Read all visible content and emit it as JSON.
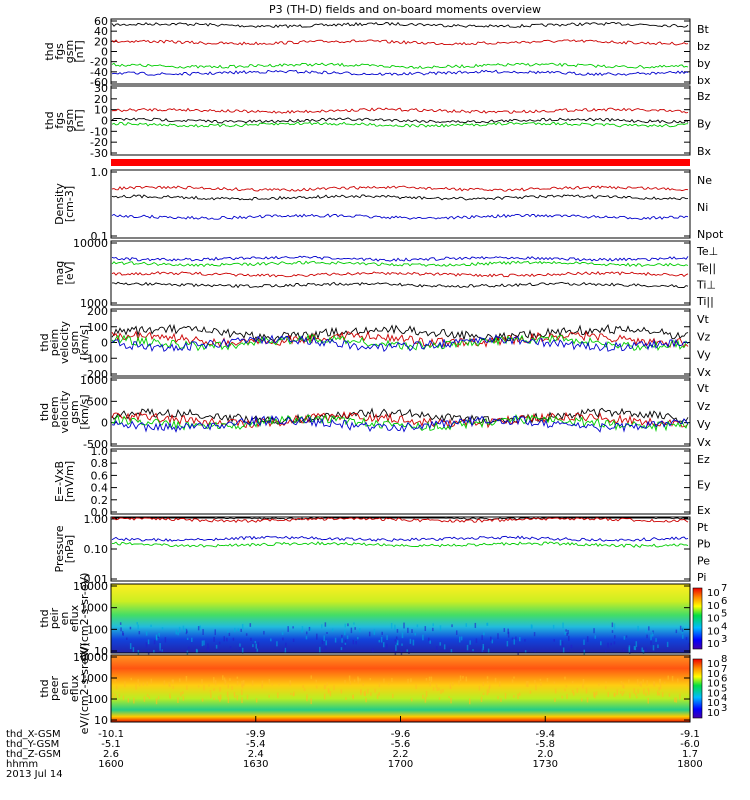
{
  "title": "P3 (TH-D) fields and on-board moments overview",
  "date": "2013 Jul 14",
  "colorbar_top_ticks": [
    "10",
    "10",
    "10",
    "10",
    "10"
  ],
  "colorbar_top_exps": [
    "7",
    "6",
    "5",
    "4",
    "3"
  ],
  "colorbar_bottom_ticks": [
    "10",
    "10",
    "10",
    "10",
    "10",
    "10"
  ],
  "colorbar_bottom_exps": [
    "8",
    "7",
    "6",
    "5",
    "4",
    "3"
  ],
  "ephemeris": {
    "row_labels": [
      "thd_X-GSM",
      "thd_Y-GSM",
      "thd_Z-GSM",
      "hhmm"
    ],
    "columns": [
      [
        "-10.1",
        "-5.1",
        "2.6",
        "1600"
      ],
      [
        "-9.9",
        "-5.4",
        "2.4",
        "1630"
      ],
      [
        "-9.6",
        "-5.6",
        "2.2",
        "1700"
      ],
      [
        "-9.4",
        "-5.8",
        "2.0",
        "1730"
      ],
      [
        "-9.1",
        "-6.0",
        "1.7",
        "1800"
      ]
    ]
  },
  "chart_data": [
    {
      "type": "line",
      "ylabel": "thd fgs gsm [nT]",
      "ylim": [
        -60,
        60
      ],
      "yticks": [
        "60",
        "40",
        "20",
        "0",
        "-20",
        "-40",
        "-60"
      ],
      "series": [
        {
          "name": "Bt",
          "color": "#000000",
          "level": 52
        },
        {
          "name": "bz",
          "color": "#cc0000",
          "level": 18
        },
        {
          "name": "by",
          "color": "#00cc00",
          "level": -28
        },
        {
          "name": "bx",
          "color": "#0000cc",
          "level": -42
        }
      ]
    },
    {
      "type": "line",
      "ylabel": "thd fgs gsm [nT]",
      "ylim": [
        -40,
        40
      ],
      "yticks": [
        "30",
        "20",
        "10",
        "0",
        "-10",
        "-20",
        "-30"
      ],
      "series": [
        {
          "name": "Bz",
          "color": "#cc0000",
          "level": 12
        },
        {
          "name": "By",
          "color": "#000000",
          "level": 0
        },
        {
          "name": "Bx",
          "color": "#00cc00",
          "level": -5
        }
      ]
    },
    {
      "type": "line",
      "ylabel": "Density [cm-3]",
      "scale": "log",
      "yticks": [
        "1.0",
        "0.1"
      ],
      "series": [
        {
          "name": "Ne",
          "color": "#cc0000",
          "level": 0.55
        },
        {
          "name": "Ni",
          "color": "#000000",
          "level": 0.4
        },
        {
          "name": "Npot",
          "color": "#0000cc",
          "level": 0.2
        }
      ]
    },
    {
      "type": "line",
      "ylabel": "mag [eV]",
      "scale": "log",
      "yticks": [
        "10000",
        "1000"
      ],
      "series": [
        {
          "name": "Te⊥",
          "color": "#cc0000",
          "level": 3000
        },
        {
          "name": "Te||",
          "color": "#000000",
          "level": 2000
        },
        {
          "name": "Ti⊥",
          "color": "#00cc00",
          "level": 4500
        },
        {
          "name": "Ti||",
          "color": "#0000cc",
          "level": 5500
        }
      ]
    },
    {
      "type": "line",
      "ylabel": "thd peim velocity gsm [km/s]",
      "ylim": [
        -200,
        200
      ],
      "yticks": [
        "200",
        "100",
        "0",
        "-100",
        "-200"
      ],
      "series": [
        {
          "name": "Vt",
          "color": "#000000",
          "level": 60
        },
        {
          "name": "Vz",
          "color": "#cc0000",
          "level": 20
        },
        {
          "name": "Vy",
          "color": "#00cc00",
          "level": 0
        },
        {
          "name": "Vx",
          "color": "#0000cc",
          "level": -5
        }
      ]
    },
    {
      "type": "line",
      "ylabel": "thd peem velocity gsm [km/s]",
      "ylim": [
        -500,
        1000
      ],
      "yticks": [
        "1000",
        "500",
        "0",
        "-500"
      ],
      "series": [
        {
          "name": "Vt",
          "color": "#000000",
          "level": 150
        },
        {
          "name": "Vz",
          "color": "#cc0000",
          "level": 60
        },
        {
          "name": "Vy",
          "color": "#00cc00",
          "level": 0
        },
        {
          "name": "Vx",
          "color": "#0000cc",
          "level": -30
        }
      ]
    },
    {
      "type": "line",
      "ylabel": "E=-VxB [mV/m]",
      "ylim": [
        0,
        1
      ],
      "yticks": [
        "1.0",
        "0.8",
        "0.6",
        "0.4",
        "0.2",
        "0.0"
      ],
      "series": [
        {
          "name": "Ez",
          "color": "#cc0000"
        },
        {
          "name": "Ey",
          "color": "#00cc00"
        },
        {
          "name": "Ex",
          "color": "#0000cc"
        }
      ]
    },
    {
      "type": "line",
      "ylabel": "Pressure [nPa]",
      "scale": "log",
      "yticks": [
        "1.00",
        "0.10",
        "0.01"
      ],
      "series": [
        {
          "name": "Pt",
          "color": "#000000",
          "level": 1.15
        },
        {
          "name": "Pb",
          "color": "#cc0000",
          "level": 0.95
        },
        {
          "name": "Pe",
          "color": "#00cc00",
          "level": 0.14
        },
        {
          "name": "Pi",
          "color": "#0000cc",
          "level": 0.22
        }
      ]
    },
    {
      "type": "heatmap",
      "ylabel": "thd peir en eflux eV/(cm2-s-sr-eV)",
      "scale": "log",
      "yticks": [
        "10000",
        "1000",
        "100",
        "10"
      ]
    },
    {
      "type": "heatmap",
      "ylabel": "thd peer en eflux eV/(cm2-s-sr-eV)",
      "scale": "log",
      "yticks": [
        "10000",
        "1000",
        "100",
        "10"
      ]
    }
  ]
}
